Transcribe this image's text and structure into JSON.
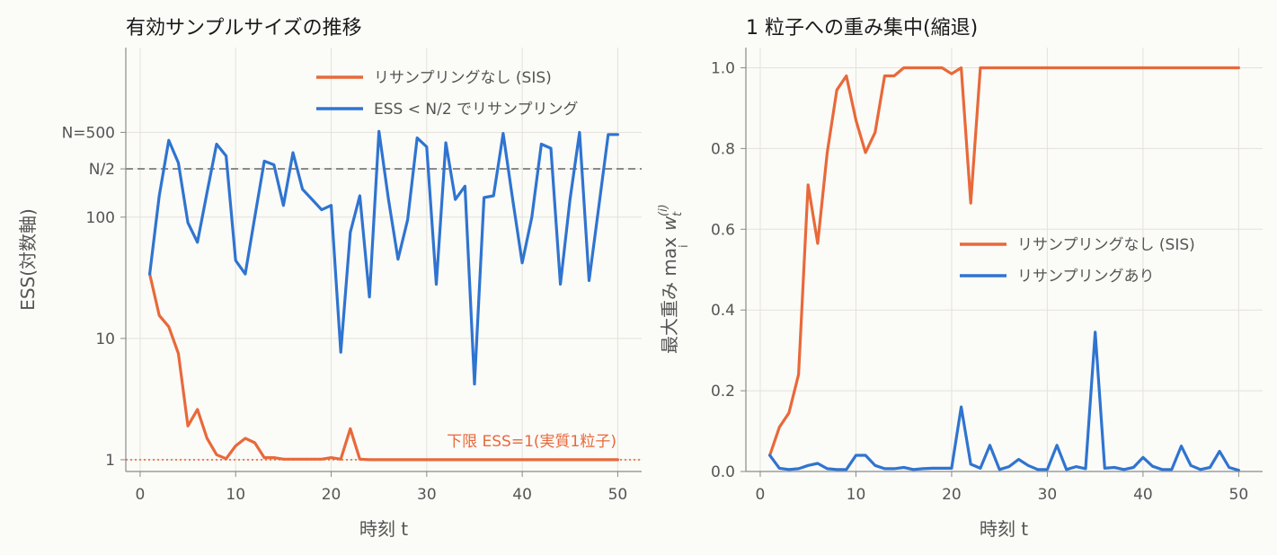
{
  "chart_data": [
    {
      "type": "line",
      "title": "有効サンプルサイズの推移",
      "xlabel": "時刻 t",
      "ylabel": "ESS(対数軸)",
      "yscale": "log",
      "xlim": [
        -1.5,
        52.5
      ],
      "ylim": [
        0.8,
        2500
      ],
      "xticks": [
        0,
        10,
        20,
        30,
        40,
        50
      ],
      "yticks": [
        {
          "value": 1,
          "label": "1"
        },
        {
          "value": 10,
          "label": "10"
        },
        {
          "value": 100,
          "label": "100"
        },
        {
          "value": 250,
          "label": "N/2"
        },
        {
          "value": 500,
          "label": "N=500"
        }
      ],
      "grid": true,
      "legend_position": "top-right",
      "x": [
        1,
        2,
        3,
        4,
        5,
        6,
        7,
        8,
        9,
        10,
        11,
        12,
        13,
        14,
        15,
        16,
        17,
        18,
        19,
        20,
        21,
        22,
        23,
        24,
        25,
        26,
        27,
        28,
        29,
        30,
        31,
        32,
        33,
        34,
        35,
        36,
        37,
        38,
        39,
        40,
        41,
        42,
        43,
        44,
        45,
        46,
        47,
        48,
        49,
        50
      ],
      "series": [
        {
          "name": "リサンプリングなし (SIS)",
          "color": "#e8693a",
          "values": [
            34,
            15.5,
            12.5,
            7.5,
            1.9,
            2.6,
            1.5,
            1.1,
            1.02,
            1.3,
            1.5,
            1.38,
            1.04,
            1.04,
            1.01,
            1.01,
            1.01,
            1.01,
            1.01,
            1.04,
            1.01,
            1.8,
            1.01,
            1.0,
            1.0,
            1.0,
            1.0,
            1.0,
            1.0,
            1.0,
            1.0,
            1.0,
            1.0,
            1.0,
            1.0,
            1.0,
            1.0,
            1.0,
            1.0,
            1.0,
            1.0,
            1.0,
            1.0,
            1.0,
            1.0,
            1.0,
            1.0,
            1.0,
            1.0,
            1.0
          ]
        },
        {
          "name": "ESS < N/2 でリサンプリング",
          "color": "#2f74d0",
          "values": [
            34,
            150,
            430,
            280,
            90,
            62,
            160,
            400,
            320,
            44,
            34,
            100,
            290,
            270,
            125,
            340,
            170,
            140,
            115,
            125,
            7.7,
            75,
            150,
            22,
            510,
            140,
            45,
            95,
            450,
            380,
            28,
            410,
            140,
            180,
            4.2,
            145,
            150,
            490,
            140,
            42,
            100,
            400,
            370,
            28,
            140,
            500,
            30,
            120,
            480,
            480
          ]
        }
      ],
      "reference_lines": [
        {
          "y": 250,
          "style": "dashed",
          "color": "#8a8a8a"
        },
        {
          "y": 1,
          "style": "dotted",
          "color": "#e8693a",
          "label": "下限 ESS=1(実質1粒子)"
        }
      ]
    },
    {
      "type": "line",
      "title": "1 粒子への重み集中(縮退)",
      "xlabel": "時刻 t",
      "ylabel": "最大重み max_i w_t^(i)",
      "ylim": [
        0,
        1.05
      ],
      "xlim": [
        -1.5,
        52.5
      ],
      "xticks": [
        0,
        10,
        20,
        30,
        40,
        50
      ],
      "yticks": [
        {
          "value": 0.0,
          "label": "0.0"
        },
        {
          "value": 0.2,
          "label": "0.2"
        },
        {
          "value": 0.4,
          "label": "0.4"
        },
        {
          "value": 0.6,
          "label": "0.6"
        },
        {
          "value": 0.8,
          "label": "0.8"
        },
        {
          "value": 1.0,
          "label": "1.0"
        }
      ],
      "grid": true,
      "legend_position": "center-right",
      "x": [
        1,
        2,
        3,
        4,
        5,
        6,
        7,
        8,
        9,
        10,
        11,
        12,
        13,
        14,
        15,
        16,
        17,
        18,
        19,
        20,
        21,
        22,
        23,
        24,
        25,
        26,
        27,
        28,
        29,
        30,
        31,
        32,
        33,
        34,
        35,
        36,
        37,
        38,
        39,
        40,
        41,
        42,
        43,
        44,
        45,
        46,
        47,
        48,
        49,
        50
      ],
      "series": [
        {
          "name": "リサンプリングなし (SIS)",
          "color": "#e8693a",
          "values": [
            0.04,
            0.11,
            0.145,
            0.24,
            0.71,
            0.565,
            0.79,
            0.945,
            0.98,
            0.87,
            0.79,
            0.84,
            0.98,
            0.98,
            1.0,
            1.0,
            1.0,
            1.0,
            1.0,
            0.985,
            1.0,
            0.665,
            1.0,
            1.0,
            1.0,
            1.0,
            1.0,
            1.0,
            1.0,
            1.0,
            1.0,
            1.0,
            1.0,
            1.0,
            1.0,
            1.0,
            1.0,
            1.0,
            1.0,
            1.0,
            1.0,
            1.0,
            1.0,
            1.0,
            1.0,
            1.0,
            1.0,
            1.0,
            1.0,
            1.0
          ]
        },
        {
          "name": "リサンプリングあり",
          "color": "#2f74d0",
          "values": [
            0.04,
            0.008,
            0.005,
            0.007,
            0.015,
            0.02,
            0.007,
            0.005,
            0.005,
            0.04,
            0.04,
            0.015,
            0.007,
            0.007,
            0.01,
            0.005,
            0.007,
            0.008,
            0.008,
            0.008,
            0.16,
            0.018,
            0.008,
            0.065,
            0.005,
            0.012,
            0.03,
            0.015,
            0.005,
            0.005,
            0.065,
            0.005,
            0.012,
            0.007,
            0.345,
            0.008,
            0.01,
            0.005,
            0.01,
            0.035,
            0.013,
            0.005,
            0.005,
            0.063,
            0.015,
            0.005,
            0.01,
            0.05,
            0.01,
            0.003
          ]
        }
      ]
    }
  ],
  "charts": [
    {
      "title": "有効サンプルサイズの推移",
      "xlabel": "時刻 t",
      "ylabel": "ESS(対数軸)",
      "legend": [
        "リサンプリングなし (SIS)",
        "ESS < N/2 でリサンプリング"
      ],
      "annotation": "下限 ESS=1(実質1粒子)"
    },
    {
      "title": "1 粒子への重み集中(縮退)",
      "xlabel": "時刻 t",
      "ylabel_main": "最大重み max",
      "ylabel_sub": "i",
      "ylabel_var": "w",
      "ylabel_var_sub": "t",
      "ylabel_var_sup": "(i)",
      "legend": [
        "リサンプリングなし (SIS)",
        "リサンプリングあり"
      ]
    }
  ]
}
